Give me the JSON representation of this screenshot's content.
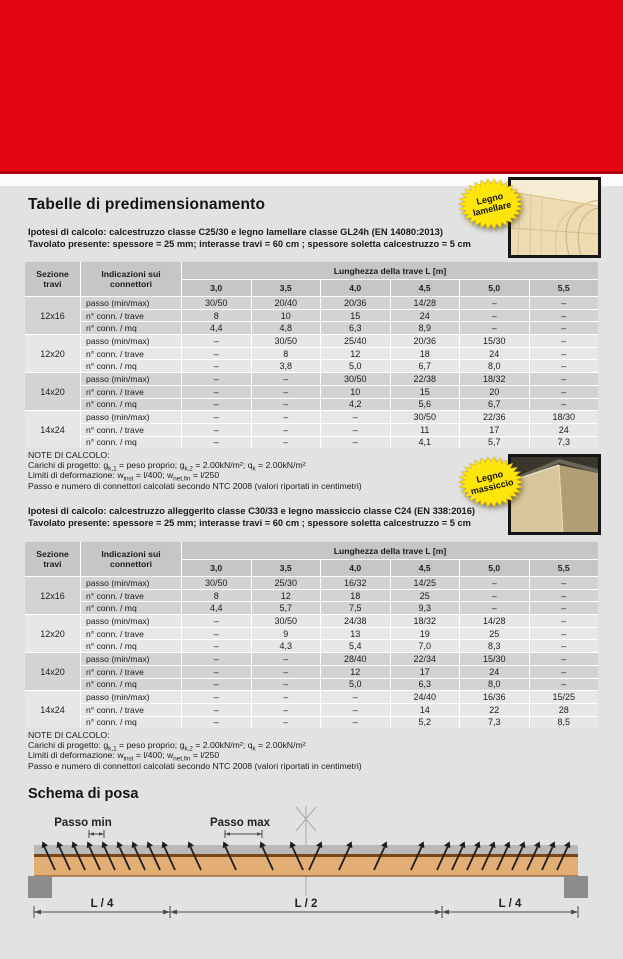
{
  "page": {
    "title": "Tabelle di predimensionamento",
    "schema_title": "Schema di posa"
  },
  "badges": {
    "lamellare": {
      "line1": "Legno",
      "line2": "lamellare"
    },
    "massiccio": {
      "line1": "Legno",
      "line2": "massiccio"
    }
  },
  "colors": {
    "brand_red": "#e30613",
    "badge_yellow": "#ffe60a",
    "wood_tan": "#e2ae74",
    "concrete_gray": "#b9b9b9"
  },
  "tables": [
    {
      "ipotesi_line1": "Ipotesi di calcolo: calcestruzzo classe C25/30 e legno lamellare classe GL24h (EN 14080:2013)",
      "ipotesi_line2": "Tavolato presente: spessore = 25 mm; interasse travi = 60 cm ; spessore soletta calcestruzzo = 5 cm",
      "header": {
        "sezione": "Sezione\ntravi",
        "indicazioni": "Indicazioni sui\nconnettori",
        "lunghezza": "Lunghezza della trave L [m]",
        "lengths": [
          "3,0",
          "3,5",
          "4,0",
          "4,5",
          "5,0",
          "5,5"
        ]
      },
      "row_labels": [
        "passo (min/max)",
        "n° conn. / trave",
        "n° conn. / mq"
      ],
      "groups": [
        {
          "sezione": "12x16",
          "rows": [
            [
              "30/50",
              "20/40",
              "20/36",
              "14/28",
              "–",
              "–"
            ],
            [
              "8",
              "10",
              "15",
              "24",
              "–",
              "–"
            ],
            [
              "4,4",
              "4,8",
              "6,3",
              "8,9",
              "–",
              "–"
            ]
          ]
        },
        {
          "sezione": "12x20",
          "rows": [
            [
              "–",
              "30/50",
              "25/40",
              "20/36",
              "15/30",
              "–"
            ],
            [
              "–",
              "8",
              "12",
              "18",
              "24",
              "–"
            ],
            [
              "–",
              "3,8",
              "5,0",
              "6,7",
              "8,0",
              "–"
            ]
          ]
        },
        {
          "sezione": "14x20",
          "rows": [
            [
              "–",
              "–",
              "30/50",
              "22/38",
              "18/32",
              "–"
            ],
            [
              "–",
              "–",
              "10",
              "15",
              "20",
              "–"
            ],
            [
              "–",
              "–",
              "4,2",
              "5,6",
              "6,7",
              "–"
            ]
          ]
        },
        {
          "sezione": "14x24",
          "rows": [
            [
              "–",
              "–",
              "–",
              "30/50",
              "22/36",
              "18/30"
            ],
            [
              "–",
              "–",
              "–",
              "11",
              "17",
              "24"
            ],
            [
              "–",
              "–",
              "–",
              "4,1",
              "5,7",
              "7,3"
            ]
          ]
        }
      ],
      "notes": {
        "title": "NOTE DI CALCOLO:",
        "line1_parts": [
          {
            "t": "Carichi di progetto: g"
          },
          {
            "s": "k,1"
          },
          {
            "t": " = peso proprio; g"
          },
          {
            "s": "k,2"
          },
          {
            "t": " = 2.00kN/m²;  q"
          },
          {
            "s": "k"
          },
          {
            "t": " = 2.00kN/m²"
          }
        ],
        "line2_parts": [
          {
            "t": "Limiti di deformazione: w"
          },
          {
            "s": "inst"
          },
          {
            "t": " = l/400; w"
          },
          {
            "s": "net,fin"
          },
          {
            "t": " = l/250"
          }
        ],
        "line3": "Passo e numero di connettori calcolati secondo NTC 2008 (valori riportati in centimetri)"
      }
    },
    {
      "ipotesi_line1": "Ipotesi di calcolo: calcestruzzo alleggerito classe C30/33 e legno massiccio classe C24 (EN 338:2016)",
      "ipotesi_line2": "Tavolato presente: spessore = 25 mm; interasse travi = 60 cm ; spessore soletta calcestruzzo = 5 cm",
      "header": {
        "sezione": "Sezione\ntravi",
        "indicazioni": "Indicazioni sui\nconnettori",
        "lunghezza": "Lunghezza della trave L [m]",
        "lengths": [
          "3,0",
          "3,5",
          "4,0",
          "4,5",
          "5,0",
          "5,5"
        ]
      },
      "row_labels": [
        "passo (min/max)",
        "n° conn. / trave",
        "n° conn. / mq"
      ],
      "groups": [
        {
          "sezione": "12x16",
          "rows": [
            [
              "30/50",
              "25/30",
              "16/32",
              "14/25",
              "–",
              "–"
            ],
            [
              "8",
              "12",
              "18",
              "25",
              "–",
              "–"
            ],
            [
              "4,4",
              "5,7",
              "7,5",
              "9,3",
              "–",
              "–"
            ]
          ]
        },
        {
          "sezione": "12x20",
          "rows": [
            [
              "–",
              "30/50",
              "24/38",
              "18/32",
              "14/28",
              "–"
            ],
            [
              "–",
              "9",
              "13",
              "19",
              "25",
              "–"
            ],
            [
              "–",
              "4,3",
              "5,4",
              "7,0",
              "8,3",
              "–"
            ]
          ]
        },
        {
          "sezione": "14x20",
          "rows": [
            [
              "–",
              "–",
              "28/40",
              "22/34",
              "15/30",
              "–"
            ],
            [
              "–",
              "–",
              "12",
              "17",
              "24",
              "–"
            ],
            [
              "–",
              "–",
              "5,0",
              "6,3",
              "8,0",
              "–"
            ]
          ]
        },
        {
          "sezione": "14x24",
          "rows": [
            [
              "–",
              "–",
              "–",
              "24/40",
              "16/36",
              "15/25"
            ],
            [
              "–",
              "–",
              "–",
              "14",
              "22",
              "28"
            ],
            [
              "–",
              "–",
              "–",
              "5,2",
              "7,3",
              "8,5"
            ]
          ]
        }
      ],
      "notes": {
        "title": "NOTE DI CALCOLO:",
        "line1_parts": [
          {
            "t": "Carichi di progetto: g"
          },
          {
            "s": "k,1"
          },
          {
            "t": " = peso proprio; g"
          },
          {
            "s": "k,2"
          },
          {
            "t": " = 2.00kN/m²;  q"
          },
          {
            "s": "k"
          },
          {
            "t": " = 2.00kN/m²"
          }
        ],
        "line2_parts": [
          {
            "t": "Limiti di deformazione: w"
          },
          {
            "s": "inst"
          },
          {
            "t": " = l/400; w"
          },
          {
            "s": "net,fin"
          },
          {
            "t": " = l/250"
          }
        ],
        "line3": "Passo e numero di connettori calcolati secondo NTC 2008 (valori riportati in centimetri)"
      }
    }
  ],
  "schema": {
    "passo_min": "Passo min",
    "passo_max": "Passo max",
    "dim_left": "L / 4",
    "dim_center": "L / 2",
    "dim_right": "L / 4"
  }
}
